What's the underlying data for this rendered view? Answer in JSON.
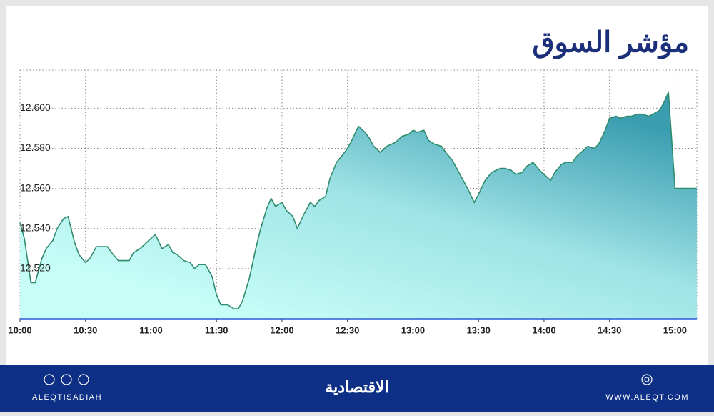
{
  "chart_data": {
    "type": "area",
    "title": "مؤشر السوق",
    "x": [
      "10:00",
      "10:02",
      "10:05",
      "10:07",
      "10:10",
      "10:12",
      "10:15",
      "10:17",
      "10:20",
      "10:22",
      "10:25",
      "10:27",
      "10:30",
      "10:32",
      "10:35",
      "10:40",
      "10:42",
      "10:45",
      "10:50",
      "10:52",
      "10:55",
      "11:00",
      "11:02",
      "11:05",
      "11:08",
      "11:10",
      "11:12",
      "11:15",
      "11:18",
      "11:20",
      "11:22",
      "11:25",
      "11:28",
      "11:30",
      "11:32",
      "11:35",
      "11:38",
      "11:40",
      "11:42",
      "11:45",
      "11:48",
      "11:50",
      "11:53",
      "11:55",
      "11:57",
      "12:00",
      "12:02",
      "12:05",
      "12:07",
      "12:10",
      "12:13",
      "12:15",
      "12:17",
      "12:20",
      "12:22",
      "12:25",
      "12:28",
      "12:30",
      "12:32",
      "12:35",
      "12:38",
      "12:40",
      "12:42",
      "12:45",
      "12:48",
      "12:50",
      "12:52",
      "12:55",
      "12:58",
      "13:00",
      "13:02",
      "13:05",
      "13:07",
      "13:10",
      "13:13",
      "13:15",
      "13:18",
      "13:20",
      "13:25",
      "13:28",
      "13:30",
      "13:33",
      "13:36",
      "13:40",
      "13:42",
      "13:45",
      "13:47",
      "13:50",
      "13:52",
      "13:55",
      "13:58",
      "14:00",
      "14:03",
      "14:05",
      "14:08",
      "14:10",
      "14:13",
      "14:15",
      "14:18",
      "14:20",
      "14:23",
      "14:25",
      "14:28",
      "14:30",
      "14:33",
      "14:35",
      "14:38",
      "14:40",
      "14:43",
      "14:45",
      "14:48",
      "14:50",
      "14:53",
      "14:55",
      "14:57",
      "15:00",
      "15:10"
    ],
    "values": [
      12.543,
      12.535,
      12.513,
      12.513,
      12.525,
      12.53,
      12.534,
      12.54,
      12.545,
      12.546,
      12.533,
      12.527,
      12.523,
      12.525,
      12.531,
      12.531,
      12.528,
      12.524,
      12.524,
      12.528,
      12.53,
      12.535,
      12.537,
      12.53,
      12.532,
      12.528,
      12.527,
      12.524,
      12.523,
      12.52,
      12.522,
      12.522,
      12.516,
      12.507,
      12.502,
      12.502,
      12.5,
      12.5,
      12.504,
      12.515,
      12.53,
      12.539,
      12.55,
      12.555,
      12.551,
      12.553,
      12.549,
      12.546,
      12.54,
      12.547,
      12.553,
      12.551,
      12.554,
      12.556,
      12.565,
      12.573,
      12.577,
      12.58,
      12.584,
      12.591,
      12.588,
      12.585,
      12.581,
      12.578,
      12.581,
      12.582,
      12.583,
      12.586,
      12.587,
      12.589,
      12.588,
      12.589,
      12.584,
      12.582,
      12.581,
      12.578,
      12.574,
      12.57,
      12.56,
      12.553,
      12.557,
      12.564,
      12.568,
      12.57,
      12.57,
      12.569,
      12.567,
      12.568,
      12.571,
      12.573,
      12.569,
      12.567,
      12.564,
      12.568,
      12.572,
      12.573,
      12.573,
      12.576,
      12.579,
      12.581,
      12.58,
      12.582,
      12.589,
      12.595,
      12.596,
      12.595,
      12.596,
      12.596,
      12.597,
      12.597,
      12.596,
      12.597,
      12.599,
      12.603,
      12.608,
      12.56,
      12.56
    ],
    "color": "#2e8b6e",
    "xlim": [
      "10:00",
      "15:10"
    ],
    "xticks": [
      "10:00",
      "10:30",
      "11:00",
      "11:30",
      "12:00",
      "12:30",
      "13:00",
      "13:30",
      "14:00",
      "14:30",
      "15:00"
    ],
    "ylim": [
      12.495,
      12.619
    ],
    "yticks": [
      {
        "value": 12.52,
        "label": "12.520"
      },
      {
        "value": 12.54,
        "label": "12.540"
      },
      {
        "value": 12.56,
        "label": "12.560"
      },
      {
        "value": 12.58,
        "label": "12.580"
      },
      {
        "value": 12.6,
        "label": "12.600"
      }
    ],
    "grid": true
  },
  "footer": {
    "left": "ALEQTISADIAH",
    "center": "الاقتصادية",
    "right": "WWW.ALEQT.COM"
  }
}
